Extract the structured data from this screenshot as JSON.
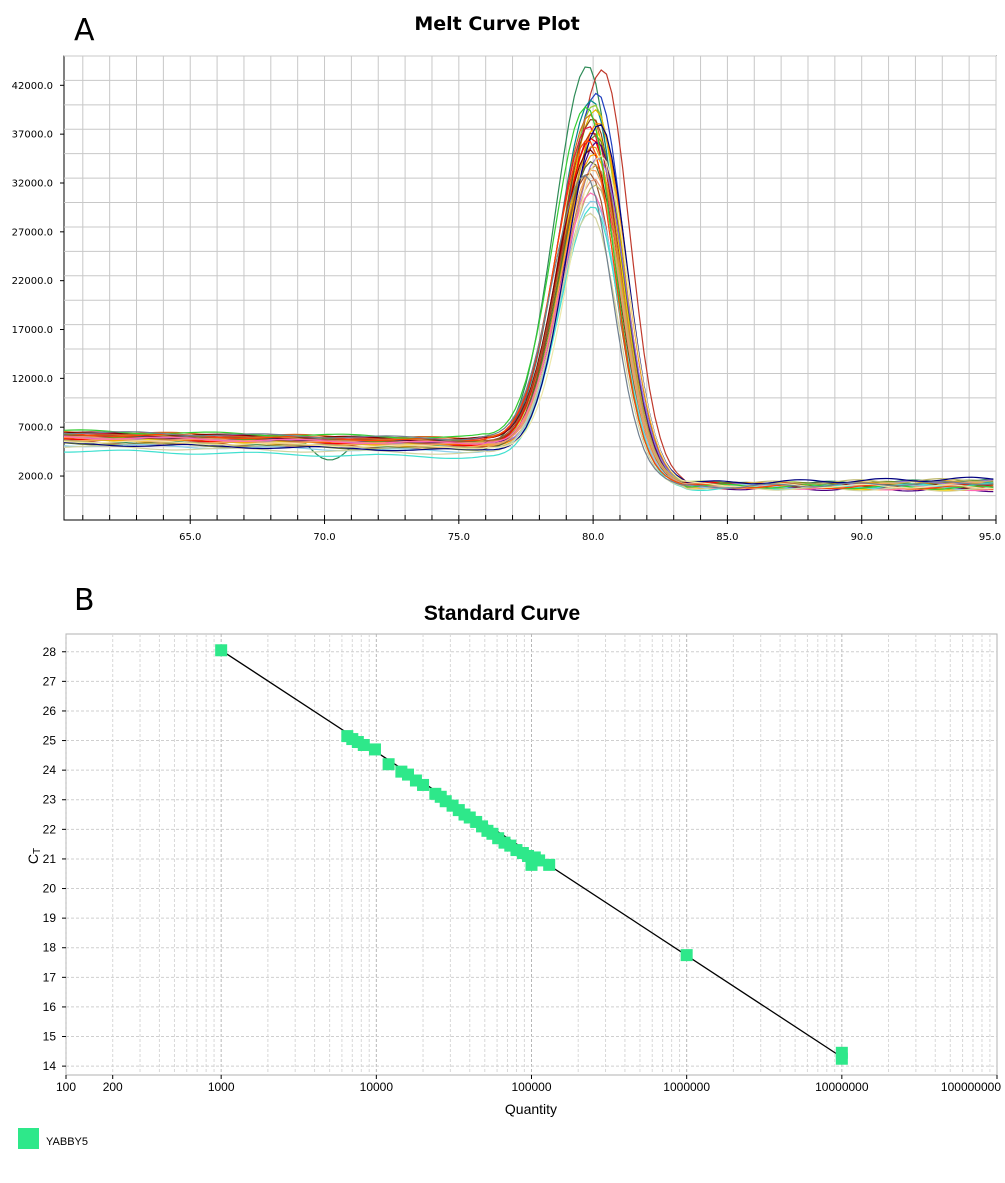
{
  "panels": {
    "a": {
      "letter": "A",
      "chart_data": {
        "type": "line",
        "title": "Melt Curve Plot",
        "xlabel": "",
        "ylabel": "",
        "xlim": [
          60.3,
          95.0
        ],
        "ylim": [
          -2500,
          45000
        ],
        "x_ticks": [
          65.0,
          70.0,
          75.0,
          80.0,
          85.0,
          90.0,
          95.0
        ],
        "x_tick_labels": [
          "65.0",
          "70.0",
          "75.0",
          "80.0",
          "85.0",
          "90.0",
          "95.0"
        ],
        "y_ticks": [
          2000,
          7000,
          12000,
          17000,
          22000,
          27000,
          32000,
          37000,
          42000
        ],
        "y_tick_labels": [
          "2000.0",
          "7000.0",
          "12000.0",
          "17000.0",
          "22000.0",
          "27000.0",
          "32000.0",
          "37000.0",
          "42000.0"
        ],
        "grid": true,
        "series_description": "about 40 overlapping melt-curve traces with a single peak near 80.0",
        "peak_x": 80.0,
        "peak_y_range": [
          29000,
          44000
        ],
        "series": [
          {
            "peak": 44000,
            "baseline": 5600,
            "tail": 1100,
            "shift": -0.2,
            "color": "#2e8b57"
          },
          {
            "peak": 43600,
            "baseline": 5900,
            "tail": 1200,
            "shift": 0.35,
            "color": "#c0392b"
          },
          {
            "peak": 41200,
            "baseline": 6200,
            "tail": 1000,
            "shift": 0.15,
            "color": "#1f3fbf"
          },
          {
            "peak": 40500,
            "baseline": 6400,
            "tail": 900,
            "shift": -0.05,
            "color": "#008b8b"
          },
          {
            "peak": 40000,
            "baseline": 6000,
            "tail": 1300,
            "shift": 0.05,
            "color": "#9acd32"
          },
          {
            "peak": 39500,
            "baseline": 5800,
            "tail": 1000,
            "shift": 0.1,
            "color": "#e6b800"
          },
          {
            "peak": 39000,
            "baseline": 6500,
            "tail": 800,
            "shift": -0.1,
            "color": "#d2691e"
          },
          {
            "peak": 38600,
            "baseline": 6100,
            "tail": 1100,
            "shift": 0.0,
            "color": "#8b4513"
          },
          {
            "peak": 38200,
            "baseline": 5700,
            "tail": 1200,
            "shift": 0.2,
            "color": "#ff8c00"
          },
          {
            "peak": 37800,
            "baseline": 6300,
            "tail": 1000,
            "shift": -0.15,
            "color": "#dc143c"
          },
          {
            "peak": 37500,
            "baseline": 6000,
            "tail": 900,
            "shift": 0.05,
            "color": "#ffd700"
          },
          {
            "peak": 37200,
            "baseline": 5500,
            "tail": 1100,
            "shift": 0.0,
            "color": "#b22222"
          },
          {
            "peak": 36900,
            "baseline": 6200,
            "tail": 1000,
            "shift": 0.1,
            "color": "#6b8e23"
          },
          {
            "peak": 36600,
            "baseline": 5900,
            "tail": 1200,
            "shift": -0.05,
            "color": "#ff0000"
          },
          {
            "peak": 36200,
            "baseline": 6100,
            "tail": 800,
            "shift": 0.15,
            "color": "#4b0082"
          },
          {
            "peak": 35800,
            "baseline": 5600,
            "tail": 1000,
            "shift": 0.0,
            "color": "#daa520"
          },
          {
            "peak": 35400,
            "baseline": 6400,
            "tail": 1100,
            "shift": -0.1,
            "color": "#800000"
          },
          {
            "peak": 35000,
            "baseline": 5800,
            "tail": 900,
            "shift": 0.05,
            "color": "#ffa500"
          },
          {
            "peak": 34600,
            "baseline": 6000,
            "tail": 1000,
            "shift": 0.2,
            "color": "#9370db"
          },
          {
            "peak": 34200,
            "baseline": 5400,
            "tail": 1200,
            "shift": -0.05,
            "color": "#556b2f"
          },
          {
            "peak": 33800,
            "baseline": 6200,
            "tail": 1000,
            "shift": 0.1,
            "color": "#cd853f"
          },
          {
            "peak": 33400,
            "baseline": 5700,
            "tail": 800,
            "shift": 0.0,
            "color": "#f4a460"
          },
          {
            "peak": 33000,
            "baseline": 6100,
            "tail": 1100,
            "shift": -0.15,
            "color": "#a0522d"
          },
          {
            "peak": 32400,
            "baseline": 5900,
            "tail": 1000,
            "shift": 0.05,
            "color": "#e9967a"
          },
          {
            "peak": 31800,
            "baseline": 5500,
            "tail": 1200,
            "shift": 0.1,
            "color": "#bdb76b"
          },
          {
            "peak": 31000,
            "baseline": 6000,
            "tail": 900,
            "shift": -0.05,
            "color": "#ff69b4"
          },
          {
            "peak": 30200,
            "baseline": 5200,
            "tail": 1000,
            "shift": 0.0,
            "color": "#87ceeb"
          },
          {
            "peak": 29600,
            "baseline": 4600,
            "tail": 700,
            "shift": 0.0,
            "color": "#40e0d0"
          },
          {
            "peak": 28900,
            "baseline": 5000,
            "tail": 800,
            "shift": -0.1,
            "color": "#d3d3a0"
          },
          {
            "peak": 39800,
            "baseline": 6600,
            "tail": 1000,
            "shift": -0.25,
            "color": "#32cd32"
          },
          {
            "peak": 38000,
            "baseline": 5300,
            "tail": 1300,
            "shift": 0.25,
            "color": "#000080"
          },
          {
            "peak": 36400,
            "baseline": 6300,
            "tail": 1000,
            "shift": -0.2,
            "color": "#ff4500"
          },
          {
            "peak": 34800,
            "baseline": 5600,
            "tail": 1100,
            "shift": 0.3,
            "color": "#eee8aa"
          },
          {
            "peak": 32800,
            "baseline": 6500,
            "tail": 900,
            "shift": -0.3,
            "color": "#708090"
          }
        ]
      }
    },
    "b": {
      "letter": "B",
      "chart_data": {
        "type": "scatter",
        "title": "Standard Curve",
        "xlabel": "Quantity",
        "ylabel": "CT",
        "ylabel_main": "C",
        "ylabel_sub": "T",
        "x_scale": "log",
        "xlim": [
          100,
          100000000
        ],
        "ylim": [
          13.7,
          28.6
        ],
        "x_ticks": [
          100,
          200,
          1000,
          10000,
          100000,
          1000000,
          10000000,
          100000000
        ],
        "x_tick_labels": [
          "100",
          "200",
          "1000",
          "10000",
          "100000",
          "1000000",
          "10000000",
          "100000000"
        ],
        "y_ticks": [
          14,
          15,
          16,
          17,
          18,
          19,
          20,
          21,
          22,
          23,
          24,
          25,
          26,
          27,
          28
        ],
        "y_tick_labels": [
          "14",
          "15",
          "16",
          "17",
          "18",
          "19",
          "20",
          "21",
          "22",
          "23",
          "24",
          "25",
          "26",
          "27",
          "28"
        ],
        "grid": true,
        "marker_color": "#2ee88a",
        "trendline": {
          "x": [
            1000,
            10000000
          ],
          "y": [
            28.05,
            14.3
          ]
        },
        "points": [
          {
            "x": 1000,
            "y": 28.05
          },
          {
            "x": 6500,
            "y": 25.15
          },
          {
            "x": 7000,
            "y": 25.05
          },
          {
            "x": 7600,
            "y": 24.95
          },
          {
            "x": 8300,
            "y": 24.85
          },
          {
            "x": 9800,
            "y": 24.7
          },
          {
            "x": 12000,
            "y": 24.2
          },
          {
            "x": 14500,
            "y": 23.95
          },
          {
            "x": 16000,
            "y": 23.85
          },
          {
            "x": 18000,
            "y": 23.65
          },
          {
            "x": 20000,
            "y": 23.5
          },
          {
            "x": 24000,
            "y": 23.2
          },
          {
            "x": 26000,
            "y": 23.1
          },
          {
            "x": 28000,
            "y": 22.95
          },
          {
            "x": 31000,
            "y": 22.8
          },
          {
            "x": 34000,
            "y": 22.65
          },
          {
            "x": 37000,
            "y": 22.5
          },
          {
            "x": 40000,
            "y": 22.4
          },
          {
            "x": 44000,
            "y": 22.25
          },
          {
            "x": 48000,
            "y": 22.1
          },
          {
            "x": 52000,
            "y": 21.95
          },
          {
            "x": 56000,
            "y": 21.85
          },
          {
            "x": 61000,
            "y": 21.7
          },
          {
            "x": 67000,
            "y": 21.55
          },
          {
            "x": 73000,
            "y": 21.45
          },
          {
            "x": 80000,
            "y": 21.3
          },
          {
            "x": 88000,
            "y": 21.2
          },
          {
            "x": 95000,
            "y": 21.1
          },
          {
            "x": 100000,
            "y": 20.8
          },
          {
            "x": 105000,
            "y": 21.05
          },
          {
            "x": 112000,
            "y": 20.95
          },
          {
            "x": 130000,
            "y": 20.8
          },
          {
            "x": 1000000,
            "y": 17.75
          },
          {
            "x": 10000000,
            "y": 14.45
          },
          {
            "x": 10000000,
            "y": 14.25
          }
        ],
        "legend": {
          "label": "YABBY5",
          "color": "#2ee88a",
          "position": "bottom-left"
        }
      }
    }
  }
}
